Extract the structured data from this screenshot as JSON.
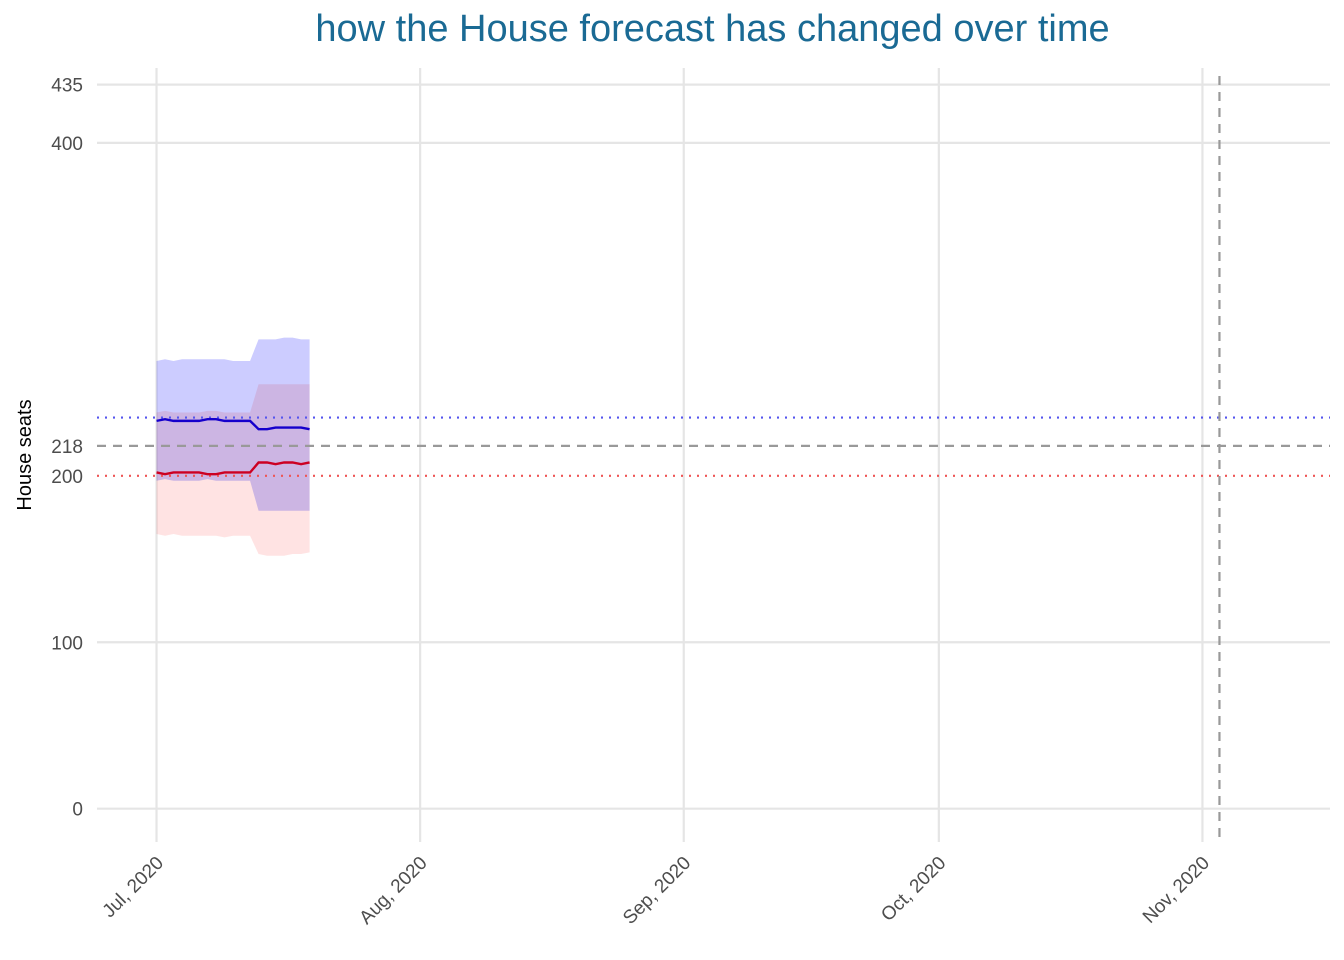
{
  "chart_data": {
    "type": "line",
    "title": "how the House forecast has changed over time",
    "xlabel": "",
    "ylabel": "House seats",
    "x_ticks": [
      "Jul, 2020",
      "Aug, 2020",
      "Sep, 2020",
      "Oct, 2020",
      "Nov, 2020"
    ],
    "y_ticks": [
      0,
      100,
      200,
      218,
      400,
      435
    ],
    "xlim": [
      "2020-06-24",
      "2020-11-16"
    ],
    "ylim": [
      -20,
      445
    ],
    "grid": true,
    "reference_lines": [
      {
        "axis": "y",
        "value": 218,
        "style": "dashed",
        "color": "#999999"
      },
      {
        "axis": "y",
        "value": 235,
        "style": "dotted",
        "color": "#5555ee"
      },
      {
        "axis": "y",
        "value": 200,
        "style": "dotted",
        "color": "#ee5555"
      },
      {
        "axis": "x",
        "value": "2020-11-03",
        "style": "dashed",
        "color": "#999999"
      }
    ],
    "x": [
      "2020-07-01",
      "2020-07-02",
      "2020-07-03",
      "2020-07-04",
      "2020-07-05",
      "2020-07-06",
      "2020-07-07",
      "2020-07-08",
      "2020-07-09",
      "2020-07-10",
      "2020-07-11",
      "2020-07-12",
      "2020-07-13",
      "2020-07-14",
      "2020-07-15",
      "2020-07-16",
      "2020-07-17",
      "2020-07-18",
      "2020-07-19"
    ],
    "series": [
      {
        "name": "",
        "color": "#1500cc",
        "band_color": "#ccccff",
        "values": [
          233,
          234,
          233,
          233,
          233,
          233,
          234,
          234,
          233,
          233,
          233,
          233,
          228,
          228,
          229,
          229,
          229,
          229,
          228
        ],
        "upper": [
          269,
          270,
          269,
          270,
          270,
          270,
          270,
          270,
          270,
          269,
          269,
          269,
          282,
          282,
          282,
          283,
          283,
          282,
          282
        ],
        "lower": [
          197,
          198,
          197,
          197,
          197,
          197,
          198,
          197,
          197,
          197,
          197,
          197,
          179,
          179,
          179,
          179,
          179,
          179,
          179
        ]
      },
      {
        "name": "",
        "color": "#cc0022",
        "band_color": "#ffcccc",
        "values": [
          202,
          201,
          202,
          202,
          202,
          202,
          201,
          201,
          202,
          202,
          202,
          202,
          208,
          208,
          207,
          208,
          208,
          207,
          208
        ],
        "upper": [
          238,
          239,
          238,
          238,
          238,
          238,
          239,
          239,
          238,
          238,
          238,
          238,
          255,
          255,
          255,
          255,
          255,
          255,
          255
        ],
        "lower": [
          165,
          164,
          165,
          164,
          164,
          164,
          164,
          164,
          163,
          164,
          164,
          164,
          153,
          152,
          152,
          152,
          153,
          153,
          154
        ]
      }
    ]
  },
  "colors": {
    "title": "#1a6a94",
    "grid": "#e5e5e5",
    "tick_text": "#4d4d4d"
  }
}
